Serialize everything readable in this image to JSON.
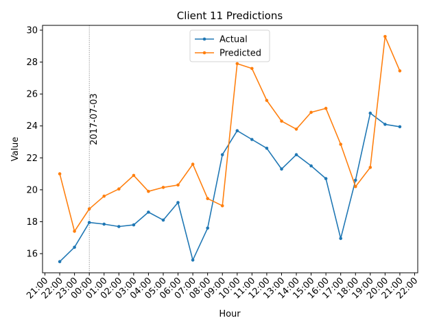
{
  "chart_data": {
    "type": "line",
    "title": "Client 11 Predictions",
    "xlabel": "Hour",
    "ylabel": "Value",
    "ylim": [
      14.8,
      30.3
    ],
    "yticks": [
      16,
      18,
      20,
      22,
      24,
      26,
      28,
      30
    ],
    "x_tick_labels": [
      "21:00",
      "22:00",
      "23:00",
      "00:00",
      "01:00",
      "02:00",
      "03:00",
      "04:00",
      "05:00",
      "06:00",
      "07:00",
      "08:00",
      "09:00",
      "10:00",
      "11:00",
      "12:00",
      "13:00",
      "14:00",
      "15:00",
      "16:00",
      "17:00",
      "18:00",
      "19:00",
      "20:00",
      "21:00",
      "22:00"
    ],
    "categories": [
      "22:00",
      "23:00",
      "00:00",
      "01:00",
      "02:00",
      "03:00",
      "04:00",
      "05:00",
      "06:00",
      "07:00",
      "08:00",
      "09:00",
      "10:00",
      "11:00",
      "12:00",
      "13:00",
      "14:00",
      "15:00",
      "16:00",
      "17:00",
      "18:00",
      "19:00",
      "20:00",
      "21:00"
    ],
    "annotation": {
      "text": "2017-07-03",
      "at": "00:00"
    },
    "legend": {
      "placement": "upper-center"
    },
    "grid": false,
    "series": [
      {
        "name": "Actual",
        "color": "#1f77b4",
        "values": [
          15.5,
          16.4,
          17.95,
          17.85,
          17.7,
          17.8,
          18.6,
          18.1,
          19.2,
          15.6,
          17.6,
          22.2,
          23.7,
          23.15,
          22.6,
          21.3,
          22.2,
          21.5,
          20.7,
          16.95,
          20.6,
          24.8,
          24.1,
          23.95
        ]
      },
      {
        "name": "Predicted",
        "color": "#ff7f0e",
        "values": [
          21.0,
          17.4,
          18.8,
          19.6,
          20.05,
          20.9,
          19.9,
          20.15,
          20.3,
          21.6,
          19.45,
          19.0,
          27.9,
          27.6,
          25.6,
          24.3,
          23.8,
          24.85,
          25.1,
          22.85,
          20.2,
          21.4,
          29.6,
          27.45
        ]
      }
    ]
  }
}
